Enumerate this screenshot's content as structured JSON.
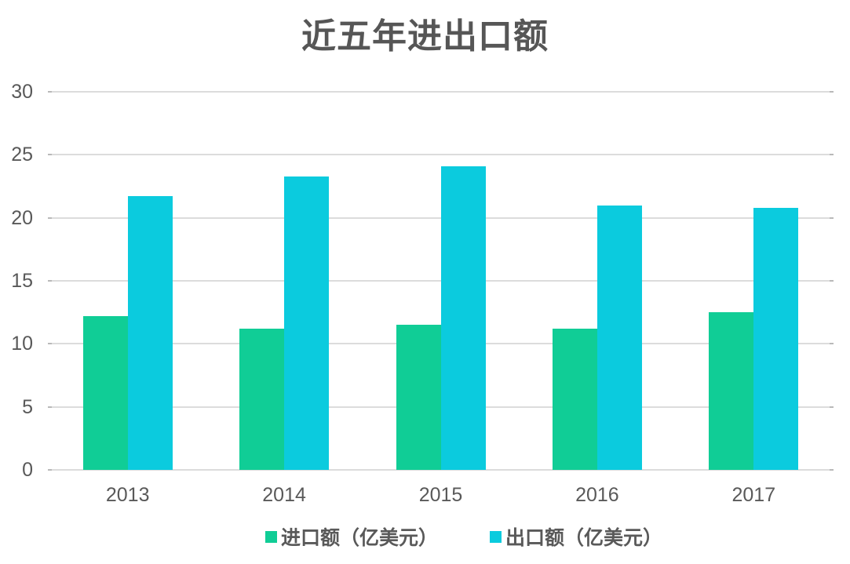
{
  "title": "近五年进出口额",
  "colors": {
    "import_bar": "#10CD96",
    "export_bar": "#0BCBDE",
    "gridline": "#DCDCDC",
    "grid_tick": "#B9B9B9",
    "axis_text": "#595959",
    "title_text": "#565656",
    "background": "#FFFFFF"
  },
  "chart_data": {
    "type": "bar",
    "title": "近五年进出口额",
    "categories": [
      "2013",
      "2014",
      "2015",
      "2016",
      "2017"
    ],
    "series": [
      {
        "name": "进口额（亿美元）",
        "color": "#10CD96",
        "values": [
          12.2,
          11.2,
          11.5,
          11.2,
          12.5
        ]
      },
      {
        "name": "出口额（亿美元）",
        "color": "#0BCBDE",
        "values": [
          21.7,
          23.3,
          24.1,
          21.0,
          20.8
        ]
      }
    ],
    "xlabel": "",
    "ylabel": "",
    "ylim": [
      0,
      30
    ],
    "yticks": [
      0,
      5,
      10,
      15,
      20,
      25,
      30
    ],
    "grid": true,
    "legend_position": "bottom"
  }
}
